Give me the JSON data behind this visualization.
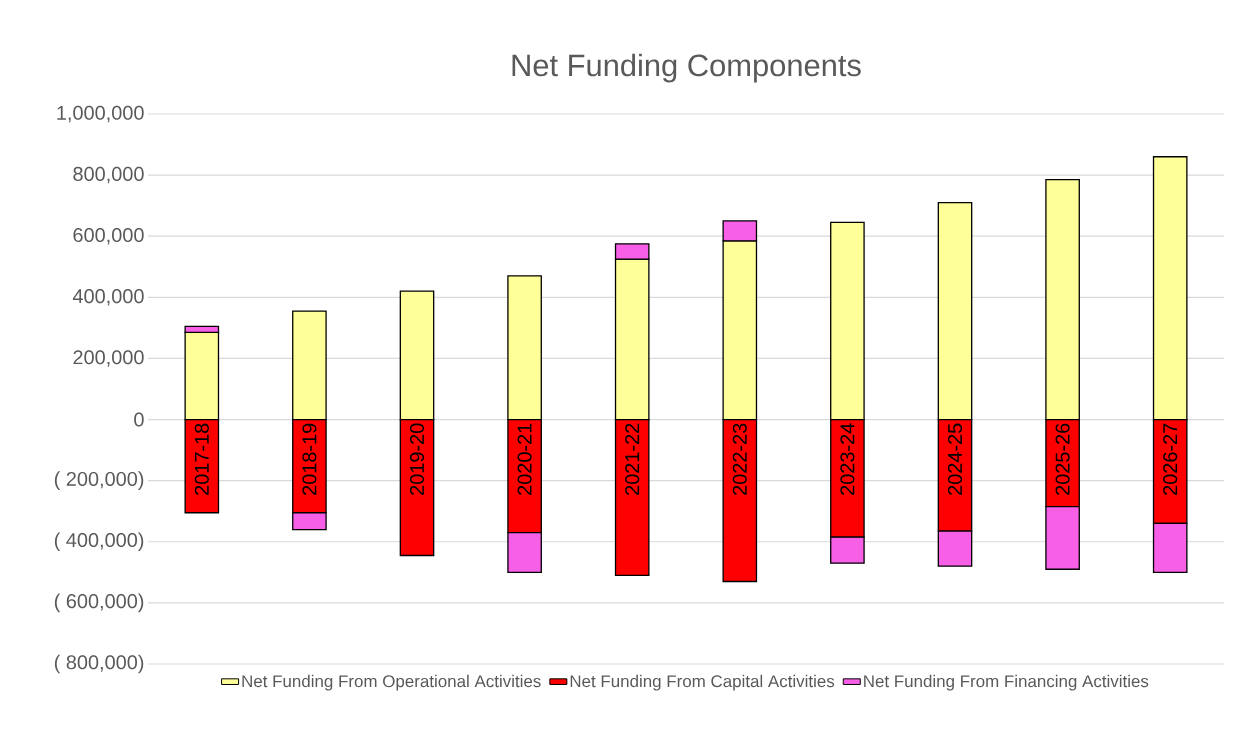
{
  "chart_data": {
    "type": "bar",
    "title": "Net Funding Components",
    "stacked": true,
    "grid": "y",
    "legend": "bottom",
    "categories": [
      "2017-18",
      "2018-19",
      "2019-20",
      "2020-21",
      "2021-22",
      "2022-23",
      "2023-24",
      "2024-25",
      "2025-26",
      "2026-27"
    ],
    "series": [
      {
        "name": "Net Funding From Operational Activities",
        "color": "#ffff99",
        "values": [
          285000,
          355000,
          420000,
          470000,
          525000,
          585000,
          645000,
          710000,
          785000,
          860000
        ]
      },
      {
        "name": "Net Funding From Capital Activities",
        "color": "#ff0000",
        "values": [
          -305000,
          -305000,
          -445000,
          -370000,
          -510000,
          -530000,
          -385000,
          -365000,
          -285000,
          -340000
        ]
      },
      {
        "name": "Net Funding From Financing Activities",
        "color": "#f75fe6",
        "values": [
          20000,
          -55000,
          null,
          -130000,
          50000,
          65000,
          -85000,
          -115000,
          -205000,
          -160000
        ]
      }
    ],
    "ylim": [
      -800000,
      1000000
    ],
    "yticks": [
      {
        "value": -800000,
        "label": "( 800,000)"
      },
      {
        "value": -600000,
        "label": "( 600,000)"
      },
      {
        "value": -400000,
        "label": "( 400,000)"
      },
      {
        "value": -200000,
        "label": "( 200,000)"
      },
      0,
      {
        "value": 200000,
        "label": "200,000"
      },
      {
        "value": 400000,
        "label": "400,000"
      },
      {
        "value": 600000,
        "label": "600,000"
      },
      {
        "value": 800000,
        "label": "800,000"
      },
      {
        "value": 1000000,
        "label": "1,000,000"
      }
    ]
  }
}
